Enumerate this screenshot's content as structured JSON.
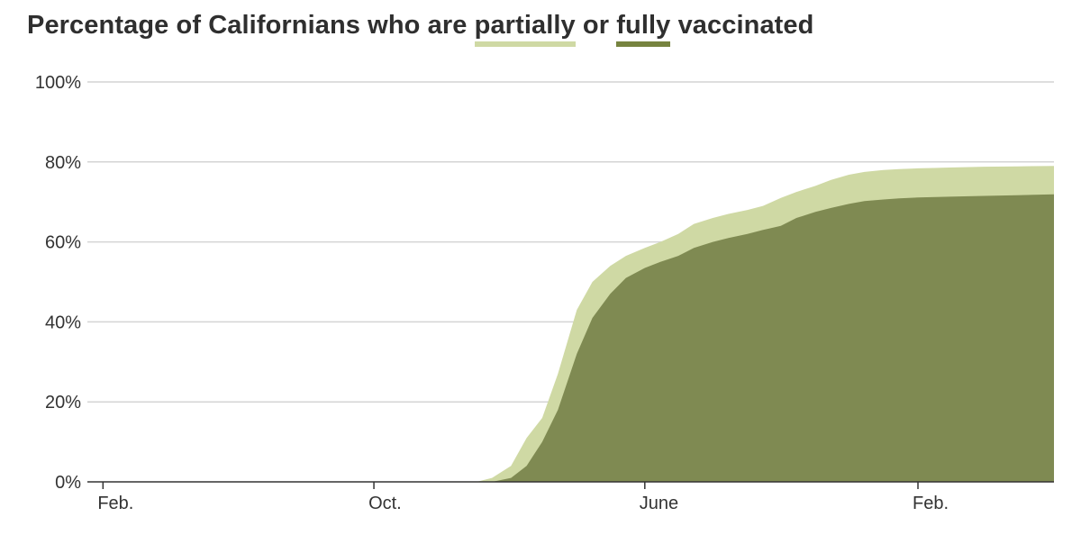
{
  "title": {
    "prefix": "Percentage of Californians who are ",
    "partial_word": "partially",
    "middle": " or ",
    "full_word": "fully",
    "suffix": " vaccinated"
  },
  "colors": {
    "partially": "#cfd9a4",
    "fully": "#7f8a52",
    "grid": "#d4d4d4",
    "axis": "#333333"
  },
  "chart_data": {
    "type": "area",
    "title": "Percentage of Californians who are partially or fully vaccinated",
    "ylim": [
      0,
      100
    ],
    "y_ticks": [
      0,
      20,
      40,
      60,
      80,
      100
    ],
    "y_tick_labels": [
      "0%",
      "20%",
      "40%",
      "60%",
      "80%",
      "100%"
    ],
    "x_tick_labels": [
      {
        "date": "2020-02-01",
        "label": "Feb."
      },
      {
        "date": "2020-10-01",
        "label": "Oct."
      },
      {
        "date": "2021-06-01",
        "label": "June"
      },
      {
        "date": "2022-02-01",
        "label": "Feb."
      }
    ],
    "x_range": [
      "2020-01-18",
      "2022-06-03"
    ],
    "grid": true,
    "series": [
      {
        "name": "partially",
        "color": "#cfd9a4",
        "points": [
          [
            "2021-01-01",
            0
          ],
          [
            "2021-01-15",
            1
          ],
          [
            "2021-02-01",
            4
          ],
          [
            "2021-02-15",
            11
          ],
          [
            "2021-03-01",
            16
          ],
          [
            "2021-03-15",
            27
          ],
          [
            "2021-04-01",
            43
          ],
          [
            "2021-04-15",
            50
          ],
          [
            "2021-05-01",
            54
          ],
          [
            "2021-05-15",
            56.5
          ],
          [
            "2021-06-01",
            58.5
          ],
          [
            "2021-06-15",
            60
          ],
          [
            "2021-07-01",
            62
          ],
          [
            "2021-07-15",
            64.5
          ],
          [
            "2021-08-01",
            66
          ],
          [
            "2021-08-15",
            67
          ],
          [
            "2021-09-01",
            68
          ],
          [
            "2021-09-15",
            69
          ],
          [
            "2021-10-01",
            71
          ],
          [
            "2021-10-15",
            72.5
          ],
          [
            "2021-11-01",
            74
          ],
          [
            "2021-11-15",
            75.5
          ],
          [
            "2021-12-01",
            76.8
          ],
          [
            "2021-12-15",
            77.5
          ],
          [
            "2022-01-01",
            78
          ],
          [
            "2022-01-15",
            78.2
          ],
          [
            "2022-02-01",
            78.4
          ],
          [
            "2022-02-15",
            78.5
          ],
          [
            "2022-03-01",
            78.6
          ],
          [
            "2022-04-01",
            78.8
          ],
          [
            "2022-05-01",
            78.9
          ],
          [
            "2022-06-03",
            79
          ]
        ]
      },
      {
        "name": "fully",
        "color": "#7f8a52",
        "points": [
          [
            "2021-01-15",
            0
          ],
          [
            "2021-02-01",
            1
          ],
          [
            "2021-02-15",
            4
          ],
          [
            "2021-03-01",
            10
          ],
          [
            "2021-03-15",
            18
          ],
          [
            "2021-04-01",
            32
          ],
          [
            "2021-04-15",
            41
          ],
          [
            "2021-05-01",
            47
          ],
          [
            "2021-05-15",
            51
          ],
          [
            "2021-06-01",
            53.5
          ],
          [
            "2021-06-15",
            55
          ],
          [
            "2021-07-01",
            56.5
          ],
          [
            "2021-07-15",
            58.5
          ],
          [
            "2021-08-01",
            60
          ],
          [
            "2021-08-15",
            61
          ],
          [
            "2021-09-01",
            62
          ],
          [
            "2021-09-15",
            63
          ],
          [
            "2021-10-01",
            64
          ],
          [
            "2021-10-15",
            66
          ],
          [
            "2021-11-01",
            67.5
          ],
          [
            "2021-11-15",
            68.5
          ],
          [
            "2021-12-01",
            69.5
          ],
          [
            "2021-12-15",
            70.2
          ],
          [
            "2022-01-01",
            70.6
          ],
          [
            "2022-01-15",
            70.9
          ],
          [
            "2022-02-01",
            71.1
          ],
          [
            "2022-03-01",
            71.3
          ],
          [
            "2022-04-01",
            71.5
          ],
          [
            "2022-05-01",
            71.7
          ],
          [
            "2022-06-03",
            71.9
          ]
        ]
      }
    ]
  }
}
